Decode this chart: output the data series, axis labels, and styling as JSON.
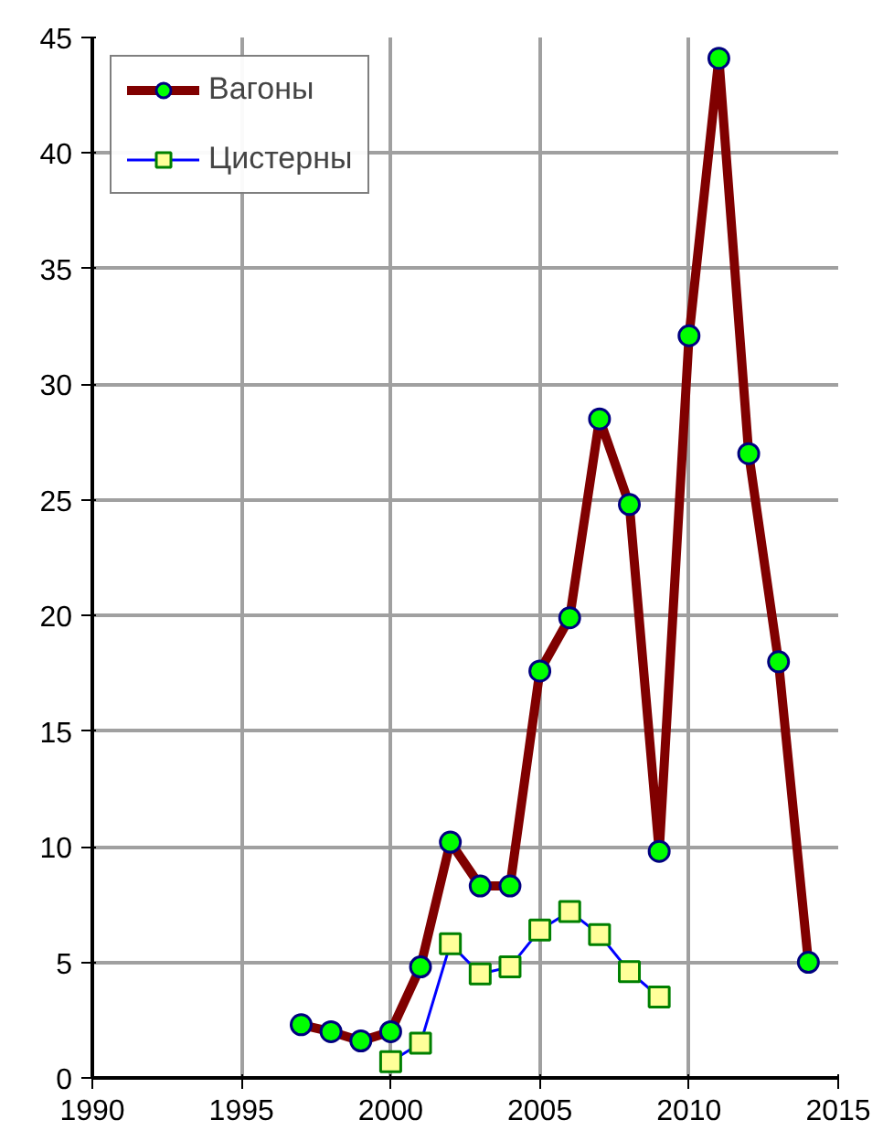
{
  "chart_data": {
    "type": "line",
    "x": [
      1997,
      1998,
      1999,
      2000,
      2001,
      2002,
      2003,
      2004,
      2005,
      2006,
      2007,
      2008,
      2009,
      2010,
      2011,
      2012,
      2013,
      2014
    ],
    "series": [
      {
        "name": "Вагоны",
        "color": "#800000",
        "marker": "circle",
        "values": [
          2.3,
          2.0,
          1.6,
          2.0,
          4.8,
          10.2,
          8.3,
          8.3,
          17.6,
          19.9,
          28.5,
          24.8,
          9.8,
          32.1,
          44.1,
          27.0,
          18.0,
          5.0
        ]
      },
      {
        "name": "Цистерны",
        "color": "#0000ff",
        "marker": "square",
        "x": [
          2000,
          2001,
          2002,
          2003,
          2004,
          2005,
          2006,
          2007,
          2008,
          2009
        ],
        "values": [
          0.7,
          1.5,
          5.8,
          4.5,
          4.8,
          6.4,
          7.2,
          6.2,
          4.6,
          3.5
        ]
      }
    ],
    "xlim": [
      1990,
      2015
    ],
    "xticks": [
      1990,
      1995,
      2000,
      2005,
      2010,
      2015
    ],
    "ylim": [
      0,
      45
    ],
    "yticks": [
      0,
      5,
      10,
      15,
      20,
      25,
      30,
      35,
      40,
      45
    ],
    "grid": true,
    "legend": "top left"
  }
}
